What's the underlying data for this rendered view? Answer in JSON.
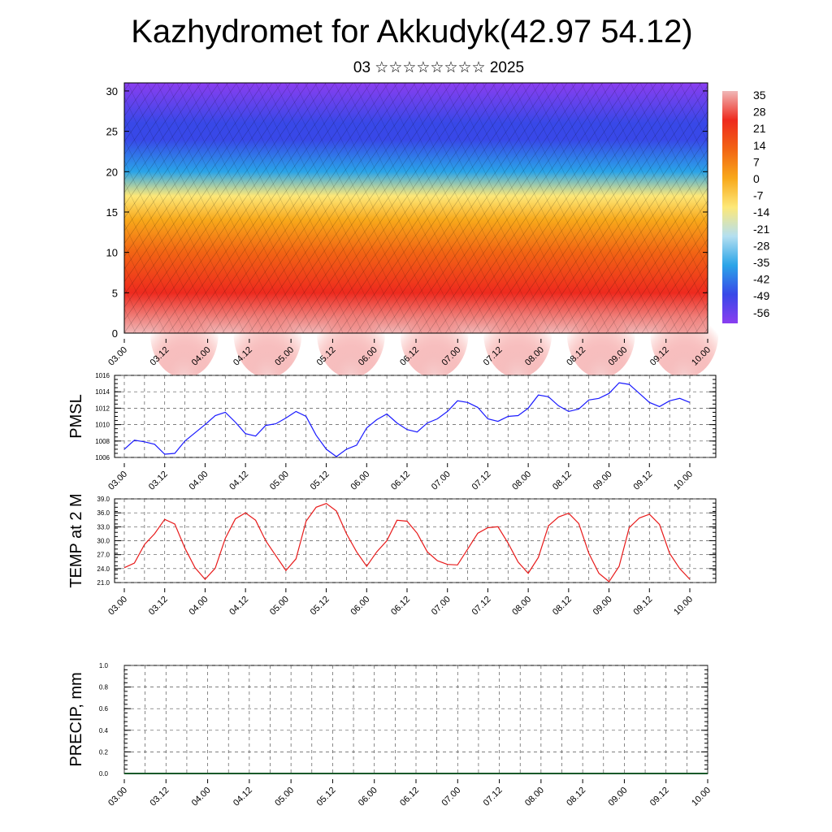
{
  "header": {
    "title": "Kazhydromet for Akkudyk(42.97 54.12)",
    "subtitle": "03 ☆☆☆☆☆☆☆☆ 2025"
  },
  "time_ticks": [
    "03.00",
    "03.12",
    "04.00",
    "04.12",
    "05.00",
    "05.12",
    "06.00",
    "06.12",
    "07.00",
    "07.12",
    "08.00",
    "08.12",
    "09.00",
    "09.12",
    "10.00"
  ],
  "chart_data": [
    {
      "type": "heatmap",
      "title": "",
      "ylim": [
        0,
        31
      ],
      "ytick_labels": [
        "0",
        "5",
        "10",
        "15",
        "20",
        "25",
        "30"
      ],
      "x_ticks": [
        "03.00",
        "03.12",
        "04.00",
        "04.12",
        "05.00",
        "05.12",
        "06.00",
        "06.12",
        "07.00",
        "07.12",
        "08.00",
        "08.12",
        "09.00",
        "09.12",
        "10.00"
      ],
      "colorbar_labels": [
        "35",
        "28",
        "21",
        "14",
        "7",
        "0",
        "-7",
        "-14",
        "-21",
        "-28",
        "-35",
        "-42",
        "-49",
        "-56"
      ],
      "colorbar_colors": [
        "#f0b8b8",
        "#ee2a1e",
        "#f26414",
        "#f8a81a",
        "#fde878",
        "#b4dff0",
        "#2aa4e8",
        "#3848e8",
        "#8a3ef0"
      ],
      "vertical_profile": [
        {
          "level": 0,
          "value": 34
        },
        {
          "level": 5,
          "value": 30
        },
        {
          "level": 10,
          "value": 18
        },
        {
          "level": 14,
          "value": 5
        },
        {
          "level": 17,
          "value": -10
        },
        {
          "level": 20,
          "value": -30
        },
        {
          "level": 24,
          "value": -52
        },
        {
          "level": 26,
          "value": -45
        },
        {
          "level": 31,
          "value": -58
        }
      ]
    },
    {
      "type": "line",
      "ylabel": "PMSL",
      "ylim": [
        1006,
        1016
      ],
      "ytick_labels": [
        "1006",
        "1008",
        "1010",
        "1012",
        "1014",
        "1016"
      ],
      "x_ticks": [
        "03.00",
        "03.12",
        "04.00",
        "04.12",
        "05.00",
        "05.12",
        "06.00",
        "06.12",
        "07.00",
        "07.12",
        "08.00",
        "08.12",
        "09.00",
        "09.12",
        "10.00"
      ],
      "series": [
        {
          "color": "#1a1aff",
          "values": [
            1007.0,
            1008.1,
            1007.9,
            1007.6,
            1006.4,
            1006.5,
            1008.0,
            1009.0,
            1010.0,
            1011.1,
            1011.5,
            1010.3,
            1008.9,
            1008.6,
            1009.9,
            1010.1,
            1010.8,
            1011.6,
            1011.0,
            1008.7,
            1007.0,
            1006.1,
            1007.0,
            1007.5,
            1009.6,
            1010.6,
            1011.3,
            1010.2,
            1009.4,
            1009.1,
            1010.2,
            1010.7,
            1011.6,
            1012.9,
            1012.7,
            1012.1,
            1010.7,
            1010.4,
            1011.0,
            1011.1,
            1012.0,
            1013.6,
            1013.4,
            1012.3,
            1011.6,
            1011.9,
            1013.0,
            1013.2,
            1013.8,
            1015.1,
            1014.9,
            1013.8,
            1012.7,
            1012.2,
            1012.9,
            1013.2,
            1012.7
          ]
        }
      ]
    },
    {
      "type": "line",
      "ylabel": "TEMP at 2 M",
      "ylim": [
        21,
        39
      ],
      "ytick_labels": [
        "21.0",
        "24.0",
        "27.0",
        "30.0",
        "33.0",
        "36.0",
        "39.0"
      ],
      "x_ticks": [
        "03.00",
        "03.12",
        "04.00",
        "04.12",
        "05.00",
        "05.12",
        "06.00",
        "06.12",
        "07.00",
        "07.12",
        "08.00",
        "08.12",
        "09.00",
        "09.12",
        "10.00"
      ],
      "series": [
        {
          "color": "#e81a1a",
          "values": [
            24.2,
            25.2,
            29.2,
            31.5,
            34.6,
            33.6,
            28.4,
            24.2,
            21.7,
            24.1,
            30.5,
            34.7,
            36.0,
            34.4,
            30.0,
            26.8,
            23.6,
            26.1,
            34.2,
            37.2,
            38.0,
            36.4,
            31.5,
            27.6,
            24.5,
            27.6,
            30.0,
            34.4,
            34.2,
            31.6,
            27.6,
            25.7,
            24.9,
            24.8,
            28.2,
            31.6,
            32.8,
            33.0,
            29.5,
            25.4,
            23.0,
            26.4,
            33.2,
            35.1,
            35.9,
            33.7,
            27.3,
            23.0,
            21.2,
            24.5,
            32.8,
            34.9,
            35.7,
            33.5,
            27.3,
            24.0,
            21.7
          ]
        }
      ]
    },
    {
      "type": "line",
      "ylabel": "PRECIP, mm",
      "ylim": [
        0,
        1
      ],
      "ytick_labels": [
        "0.0",
        "0.2",
        "0.4",
        "0.6",
        "0.8",
        "1.0"
      ],
      "x_ticks": [
        "03.00",
        "03.12",
        "04.00",
        "04.12",
        "05.00",
        "05.12",
        "06.00",
        "06.12",
        "07.00",
        "07.12",
        "08.00",
        "08.12",
        "09.00",
        "09.12",
        "10.00"
      ],
      "series": [
        {
          "color": "#1a5a2a",
          "values": [
            0,
            0,
            0,
            0,
            0,
            0,
            0,
            0,
            0,
            0,
            0,
            0,
            0,
            0,
            0
          ]
        }
      ]
    }
  ]
}
